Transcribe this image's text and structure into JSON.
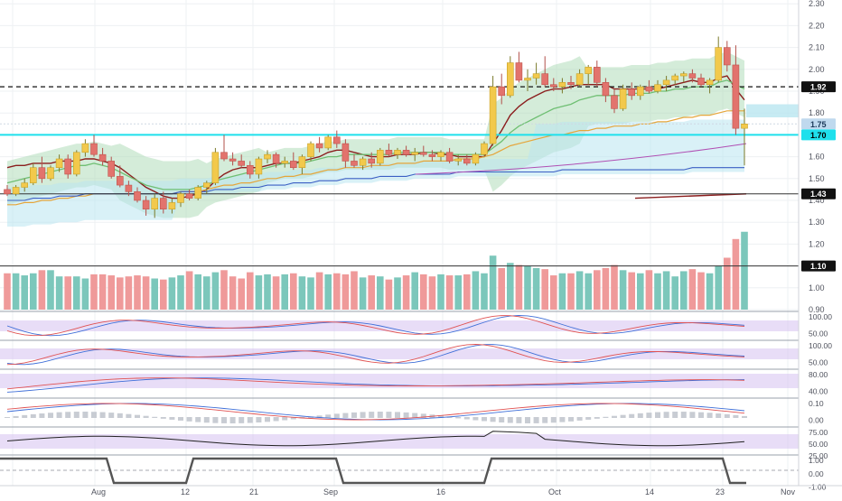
{
  "chart_data": {
    "type": "candlestick",
    "title": "",
    "colors": {
      "up": "#f2c94c",
      "down": "#e2736d",
      "vol_up": "#7cc7bb",
      "vol_down": "#ef9a9a",
      "cyan_line": "#1fe0ec",
      "bb_fill": "#a9d9b4",
      "cloud_fill": "#b9e6f0"
    },
    "price_axis": {
      "ticks": [
        "2.30",
        "2.20",
        "2.10",
        "2.00",
        "1.90",
        "1.80",
        "1.70",
        "1.60",
        "1.50",
        "1.40",
        "1.30",
        "1.20",
        "1.10",
        "1.00",
        "0.90"
      ]
    },
    "x_axis": {
      "labels": [
        "Aug",
        "12",
        "21",
        "Sep",
        "16",
        "Oct",
        "14",
        "23",
        "Nov"
      ]
    },
    "price_labels": [
      {
        "text": "1.92",
        "value": 1.92,
        "kind": "black"
      },
      {
        "text": "1.75",
        "value": 1.75,
        "kind": "light"
      },
      {
        "text": "1.70",
        "value": 1.7,
        "kind": "cyan"
      },
      {
        "text": "1.43",
        "value": 1.43,
        "kind": "black"
      },
      {
        "text": "1.10",
        "value": 1.1,
        "kind": "black"
      }
    ],
    "candles": [
      [
        1.45,
        1.47,
        1.42,
        1.43
      ],
      [
        1.43,
        1.47,
        1.42,
        1.46
      ],
      [
        1.46,
        1.5,
        1.44,
        1.48
      ],
      [
        1.48,
        1.57,
        1.47,
        1.55
      ],
      [
        1.55,
        1.6,
        1.48,
        1.5
      ],
      [
        1.5,
        1.56,
        1.49,
        1.55
      ],
      [
        1.55,
        1.61,
        1.53,
        1.59
      ],
      [
        1.59,
        1.61,
        1.5,
        1.52
      ],
      [
        1.52,
        1.63,
        1.51,
        1.62
      ],
      [
        1.62,
        1.68,
        1.6,
        1.66
      ],
      [
        1.66,
        1.7,
        1.6,
        1.61
      ],
      [
        1.61,
        1.64,
        1.56,
        1.58
      ],
      [
        1.58,
        1.6,
        1.5,
        1.51
      ],
      [
        1.51,
        1.56,
        1.46,
        1.47
      ],
      [
        1.47,
        1.49,
        1.42,
        1.44
      ],
      [
        1.44,
        1.46,
        1.39,
        1.4
      ],
      [
        1.4,
        1.42,
        1.33,
        1.36
      ],
      [
        1.36,
        1.43,
        1.32,
        1.41
      ],
      [
        1.41,
        1.44,
        1.34,
        1.36
      ],
      [
        1.36,
        1.41,
        1.34,
        1.39
      ],
      [
        1.39,
        1.44,
        1.37,
        1.43
      ],
      [
        1.43,
        1.45,
        1.4,
        1.41
      ],
      [
        1.41,
        1.47,
        1.4,
        1.46
      ],
      [
        1.46,
        1.49,
        1.43,
        1.48
      ],
      [
        1.48,
        1.64,
        1.47,
        1.62
      ],
      [
        1.62,
        1.7,
        1.58,
        1.59
      ],
      [
        1.59,
        1.62,
        1.56,
        1.58
      ],
      [
        1.58,
        1.61,
        1.55,
        1.56
      ],
      [
        1.56,
        1.58,
        1.5,
        1.52
      ],
      [
        1.52,
        1.6,
        1.5,
        1.59
      ],
      [
        1.59,
        1.63,
        1.57,
        1.61
      ],
      [
        1.61,
        1.62,
        1.55,
        1.57
      ],
      [
        1.57,
        1.6,
        1.55,
        1.58
      ],
      [
        1.58,
        1.62,
        1.54,
        1.55
      ],
      [
        1.55,
        1.61,
        1.52,
        1.6
      ],
      [
        1.6,
        1.67,
        1.58,
        1.66
      ],
      [
        1.66,
        1.69,
        1.62,
        1.64
      ],
      [
        1.64,
        1.7,
        1.63,
        1.69
      ],
      [
        1.69,
        1.72,
        1.64,
        1.66
      ],
      [
        1.66,
        1.68,
        1.55,
        1.58
      ],
      [
        1.58,
        1.61,
        1.55,
        1.56
      ],
      [
        1.56,
        1.6,
        1.54,
        1.59
      ],
      [
        1.59,
        1.62,
        1.55,
        1.57
      ],
      [
        1.57,
        1.64,
        1.56,
        1.63
      ],
      [
        1.63,
        1.66,
        1.6,
        1.61
      ],
      [
        1.61,
        1.64,
        1.59,
        1.63
      ],
      [
        1.63,
        1.65,
        1.6,
        1.61
      ],
      [
        1.61,
        1.64,
        1.58,
        1.62
      ],
      [
        1.62,
        1.65,
        1.6,
        1.61
      ],
      [
        1.61,
        1.63,
        1.58,
        1.6
      ],
      [
        1.6,
        1.63,
        1.58,
        1.62
      ],
      [
        1.62,
        1.64,
        1.57,
        1.58
      ],
      [
        1.58,
        1.61,
        1.56,
        1.59
      ],
      [
        1.59,
        1.61,
        1.56,
        1.57
      ],
      [
        1.57,
        1.62,
        1.56,
        1.61
      ],
      [
        1.61,
        1.67,
        1.6,
        1.66
      ],
      [
        1.66,
        1.97,
        1.65,
        1.92
      ],
      [
        1.92,
        1.98,
        1.84,
        1.88
      ],
      [
        1.88,
        2.06,
        1.87,
        2.03
      ],
      [
        2.03,
        2.08,
        1.94,
        1.95
      ],
      [
        1.95,
        2.0,
        1.9,
        1.96
      ],
      [
        1.96,
        2.03,
        1.93,
        1.98
      ],
      [
        1.98,
        2.06,
        1.92,
        1.93
      ],
      [
        1.93,
        1.96,
        1.9,
        1.92
      ],
      [
        1.92,
        1.96,
        1.89,
        1.94
      ],
      [
        1.94,
        1.97,
        1.91,
        1.93
      ],
      [
        1.93,
        2.0,
        1.92,
        1.98
      ],
      [
        1.98,
        2.02,
        1.93,
        2.01
      ],
      [
        2.01,
        2.04,
        1.92,
        1.94
      ],
      [
        1.94,
        1.96,
        1.85,
        1.88
      ],
      [
        1.88,
        1.91,
        1.8,
        1.82
      ],
      [
        1.82,
        1.93,
        1.81,
        1.91
      ],
      [
        1.91,
        1.94,
        1.86,
        1.88
      ],
      [
        1.88,
        1.93,
        1.86,
        1.92
      ],
      [
        1.92,
        1.95,
        1.89,
        1.9
      ],
      [
        1.9,
        1.95,
        1.89,
        1.93
      ],
      [
        1.93,
        1.97,
        1.9,
        1.95
      ],
      [
        1.95,
        1.98,
        1.93,
        1.97
      ],
      [
        1.97,
        1.99,
        1.94,
        1.98
      ],
      [
        1.98,
        2.0,
        1.94,
        1.96
      ],
      [
        1.96,
        1.98,
        1.92,
        1.93
      ],
      [
        1.93,
        1.96,
        1.89,
        1.95
      ],
      [
        1.95,
        2.15,
        1.94,
        2.1
      ],
      [
        2.1,
        2.13,
        1.99,
        2.02
      ],
      [
        2.02,
        2.11,
        1.7,
        1.73
      ],
      [
        1.73,
        1.82,
        1.56,
        1.75
      ]
    ],
    "volume": [
      35,
      35,
      33,
      35,
      38,
      38,
      32,
      32,
      32,
      30,
      34,
      34,
      33,
      31,
      32,
      33,
      32,
      30,
      29,
      31,
      33,
      37,
      34,
      32,
      36,
      38,
      32,
      30,
      36,
      33,
      34,
      32,
      34,
      35,
      32,
      31,
      36,
      34,
      35,
      34,
      37,
      31,
      33,
      32,
      29,
      31,
      33,
      36,
      34,
      32,
      34,
      33,
      33,
      34,
      37,
      35,
      52,
      40,
      45,
      43,
      42,
      40,
      39,
      33,
      35,
      35,
      37,
      35,
      38,
      40,
      43,
      38,
      36,
      35,
      38,
      35,
      37,
      32,
      37,
      39,
      36,
      35,
      42,
      50,
      68,
      75
    ],
    "volume_scale_max": 100,
    "overlay_lines": {
      "sma_maroon": [
        1.55,
        1.56,
        1.56,
        1.57,
        1.57,
        1.57,
        1.58,
        1.58,
        1.58,
        1.59,
        1.59,
        1.58,
        1.57,
        1.55,
        1.52,
        1.49,
        1.46,
        1.44,
        1.42,
        1.41,
        1.41,
        1.42,
        1.43,
        1.45,
        1.49,
        1.52,
        1.54,
        1.55,
        1.55,
        1.55,
        1.56,
        1.57,
        1.57,
        1.57,
        1.58,
        1.59,
        1.6,
        1.62,
        1.63,
        1.63,
        1.62,
        1.61,
        1.6,
        1.6,
        1.6,
        1.61,
        1.61,
        1.61,
        1.62,
        1.62,
        1.61,
        1.61,
        1.6,
        1.6,
        1.6,
        1.6,
        1.66,
        1.72,
        1.79,
        1.83,
        1.86,
        1.88,
        1.9,
        1.91,
        1.91,
        1.92,
        1.93,
        1.93,
        1.93,
        1.93,
        1.91,
        1.91,
        1.91,
        1.91,
        1.91,
        1.91,
        1.92,
        1.93,
        1.94,
        1.95,
        1.94,
        1.94,
        1.96,
        1.97,
        1.91,
        1.86
      ],
      "ema_green": [
        1.48,
        1.49,
        1.5,
        1.51,
        1.52,
        1.53,
        1.54,
        1.55,
        1.56,
        1.56,
        1.57,
        1.56,
        1.55,
        1.53,
        1.51,
        1.49,
        1.47,
        1.46,
        1.45,
        1.45,
        1.45,
        1.45,
        1.46,
        1.47,
        1.49,
        1.5,
        1.51,
        1.52,
        1.53,
        1.54,
        1.55,
        1.56,
        1.57,
        1.57,
        1.57,
        1.58,
        1.59,
        1.6,
        1.6,
        1.61,
        1.61,
        1.61,
        1.61,
        1.61,
        1.61,
        1.62,
        1.62,
        1.62,
        1.62,
        1.62,
        1.62,
        1.61,
        1.61,
        1.61,
        1.61,
        1.61,
        1.64,
        1.67,
        1.71,
        1.74,
        1.76,
        1.78,
        1.8,
        1.82,
        1.83,
        1.84,
        1.86,
        1.87,
        1.88,
        1.88,
        1.88,
        1.88,
        1.89,
        1.89,
        1.89,
        1.9,
        1.9,
        1.91,
        1.91,
        1.92,
        1.92,
        1.92,
        1.94,
        1.95,
        1.93,
        1.91
      ],
      "ema_orange": [
        1.38,
        1.38,
        1.39,
        1.39,
        1.4,
        1.4,
        1.41,
        1.41,
        1.42,
        1.42,
        1.43,
        1.43,
        1.43,
        1.43,
        1.43,
        1.43,
        1.43,
        1.43,
        1.43,
        1.43,
        1.44,
        1.44,
        1.44,
        1.45,
        1.46,
        1.47,
        1.47,
        1.48,
        1.48,
        1.49,
        1.5,
        1.5,
        1.51,
        1.51,
        1.52,
        1.52,
        1.53,
        1.54,
        1.54,
        1.55,
        1.55,
        1.55,
        1.56,
        1.56,
        1.56,
        1.57,
        1.57,
        1.57,
        1.58,
        1.58,
        1.58,
        1.58,
        1.59,
        1.59,
        1.59,
        1.6,
        1.61,
        1.63,
        1.65,
        1.66,
        1.67,
        1.68,
        1.69,
        1.7,
        1.7,
        1.71,
        1.72,
        1.72,
        1.73,
        1.73,
        1.74,
        1.74,
        1.74,
        1.75,
        1.75,
        1.76,
        1.76,
        1.77,
        1.78,
        1.78,
        1.79,
        1.79,
        1.8,
        1.81,
        1.81,
        1.81
      ],
      "ema_blue": [
        1.4,
        1.4,
        1.4,
        1.41,
        1.41,
        1.41,
        1.42,
        1.42,
        1.42,
        1.43,
        1.43,
        1.43,
        1.43,
        1.43,
        1.43,
        1.43,
        1.43,
        1.43,
        1.43,
        1.43,
        1.44,
        1.44,
        1.44,
        1.44,
        1.45,
        1.45,
        1.45,
        1.46,
        1.46,
        1.46,
        1.47,
        1.47,
        1.47,
        1.48,
        1.48,
        1.48,
        1.49,
        1.49,
        1.49,
        1.5,
        1.5,
        1.5,
        1.5,
        1.51,
        1.51,
        1.51,
        1.51,
        1.52,
        1.52,
        1.52,
        1.52,
        1.52,
        1.53,
        1.53,
        1.53,
        1.53,
        1.53,
        1.53,
        1.53,
        1.53,
        1.53,
        1.53,
        1.53,
        1.53,
        1.54,
        1.54,
        1.54,
        1.54,
        1.54,
        1.54,
        1.54,
        1.54,
        1.54,
        1.54,
        1.54,
        1.54,
        1.54,
        1.54,
        1.54,
        1.55,
        1.55,
        1.55,
        1.55,
        1.55,
        1.55,
        1.55
      ]
    }
  }
}
